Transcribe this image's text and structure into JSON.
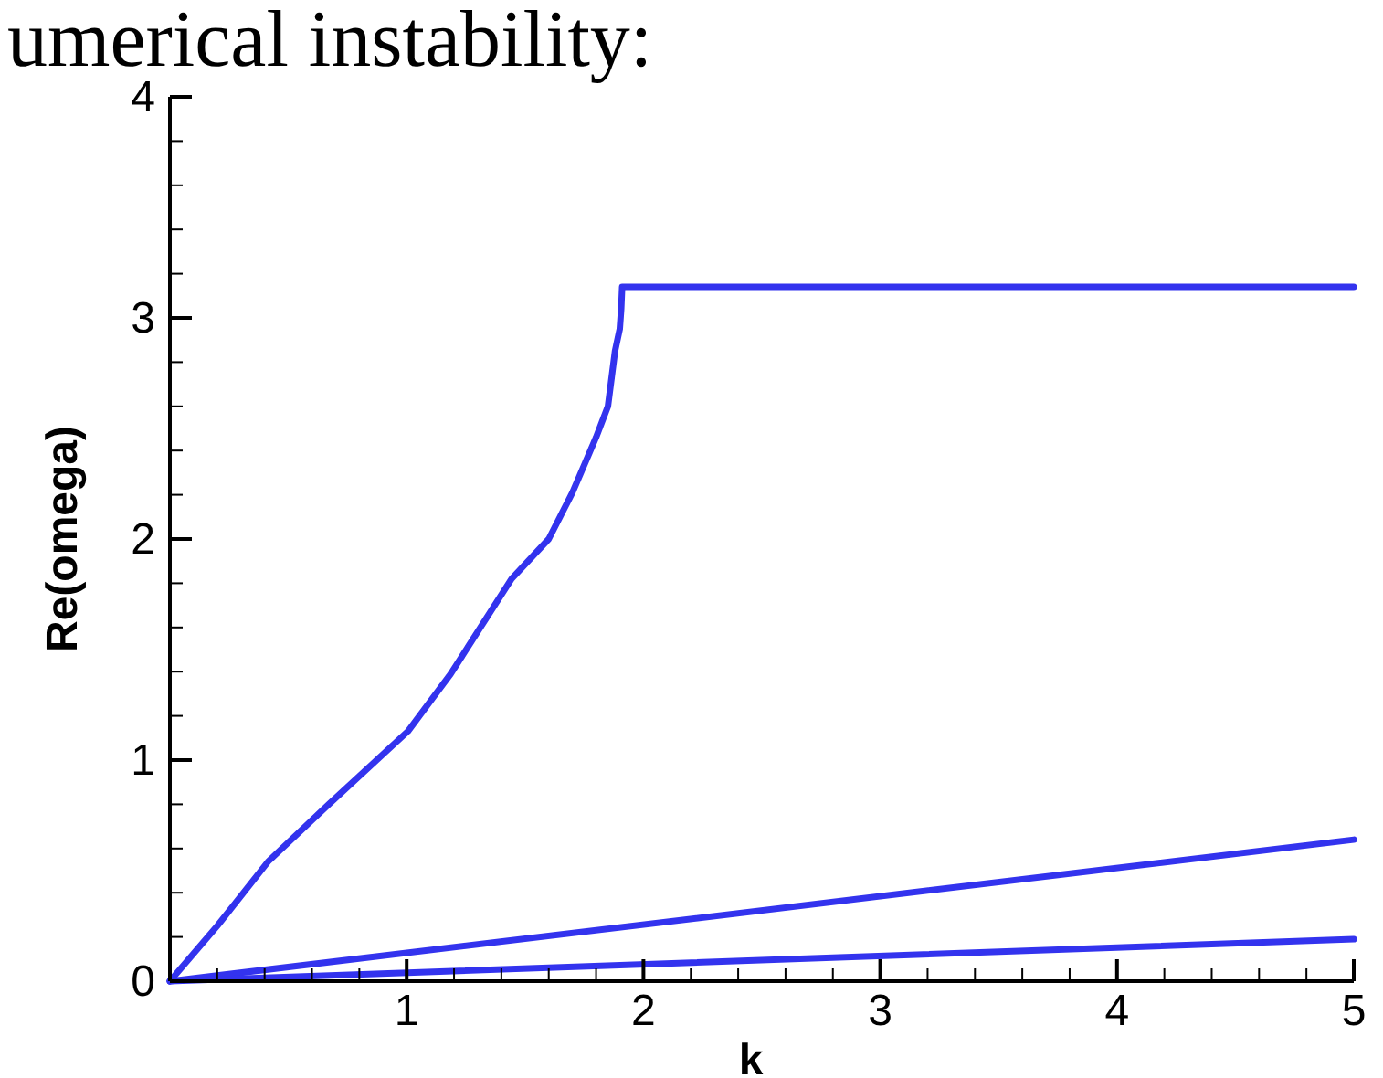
{
  "chart_data": {
    "type": "line",
    "title": "umerical instability:",
    "xlabel": "k",
    "ylabel": "Re(omega)",
    "xlim": [
      0,
      5
    ],
    "ylim": [
      0,
      4
    ],
    "xticks": [
      {
        "value": 0.2,
        "label": null
      },
      {
        "value": 0.4,
        "label": null
      },
      {
        "value": 0.6,
        "label": null
      },
      {
        "value": 0.8,
        "label": null
      },
      1,
      {
        "value": 1.2,
        "label": null
      },
      {
        "value": 1.4,
        "label": null
      },
      {
        "value": 1.6,
        "label": null
      },
      {
        "value": 1.8,
        "label": null
      },
      2,
      {
        "value": 2.2,
        "label": null
      },
      {
        "value": 2.4,
        "label": null
      },
      {
        "value": 2.6,
        "label": null
      },
      {
        "value": 2.8,
        "label": null
      },
      3,
      {
        "value": 3.2,
        "label": null
      },
      {
        "value": 3.4,
        "label": null
      },
      {
        "value": 3.6,
        "label": null
      },
      {
        "value": 3.8,
        "label": null
      },
      4,
      {
        "value": 4.2,
        "label": null
      },
      {
        "value": 4.4,
        "label": null
      },
      {
        "value": 4.6,
        "label": null
      },
      {
        "value": 4.8,
        "label": null
      },
      5
    ],
    "yticks": [
      0,
      {
        "value": 0.2,
        "label": null
      },
      {
        "value": 0.4,
        "label": null
      },
      {
        "value": 0.6,
        "label": null
      },
      {
        "value": 0.8,
        "label": null
      },
      1,
      {
        "value": 1.2,
        "label": null
      },
      {
        "value": 1.4,
        "label": null
      },
      {
        "value": 1.6,
        "label": null
      },
      {
        "value": 1.8,
        "label": null
      },
      2,
      {
        "value": 2.2,
        "label": null
      },
      {
        "value": 2.4,
        "label": null
      },
      {
        "value": 2.6,
        "label": null
      },
      {
        "value": 2.8,
        "label": null
      },
      3,
      {
        "value": 3.2,
        "label": null
      },
      {
        "value": 3.4,
        "label": null
      },
      {
        "value": 3.6,
        "label": null
      },
      {
        "value": 3.8,
        "label": null
      },
      4
    ],
    "grid": false,
    "marker": "none",
    "line_style": "solid",
    "series": [
      {
        "color": "#3333ee",
        "x": [
          0,
          0.2,
          0.414,
          0.671,
          1.005,
          1.186,
          1.443,
          1.6,
          1.7,
          1.8,
          1.85,
          1.88,
          1.9,
          1.906,
          1.91,
          5
        ],
        "values": [
          0,
          0.25,
          0.54,
          0.8,
          1.13,
          1.39,
          1.82,
          2.0,
          2.21,
          2.46,
          2.6,
          2.85,
          2.95,
          3.04,
          3.14,
          3.14
        ]
      },
      {
        "color": "#3333ee",
        "x": [
          0,
          5
        ],
        "values": [
          0,
          0.64
        ]
      },
      {
        "color": "#3333ee",
        "x": [
          0,
          5
        ],
        "values": [
          0,
          0.19
        ]
      }
    ]
  }
}
